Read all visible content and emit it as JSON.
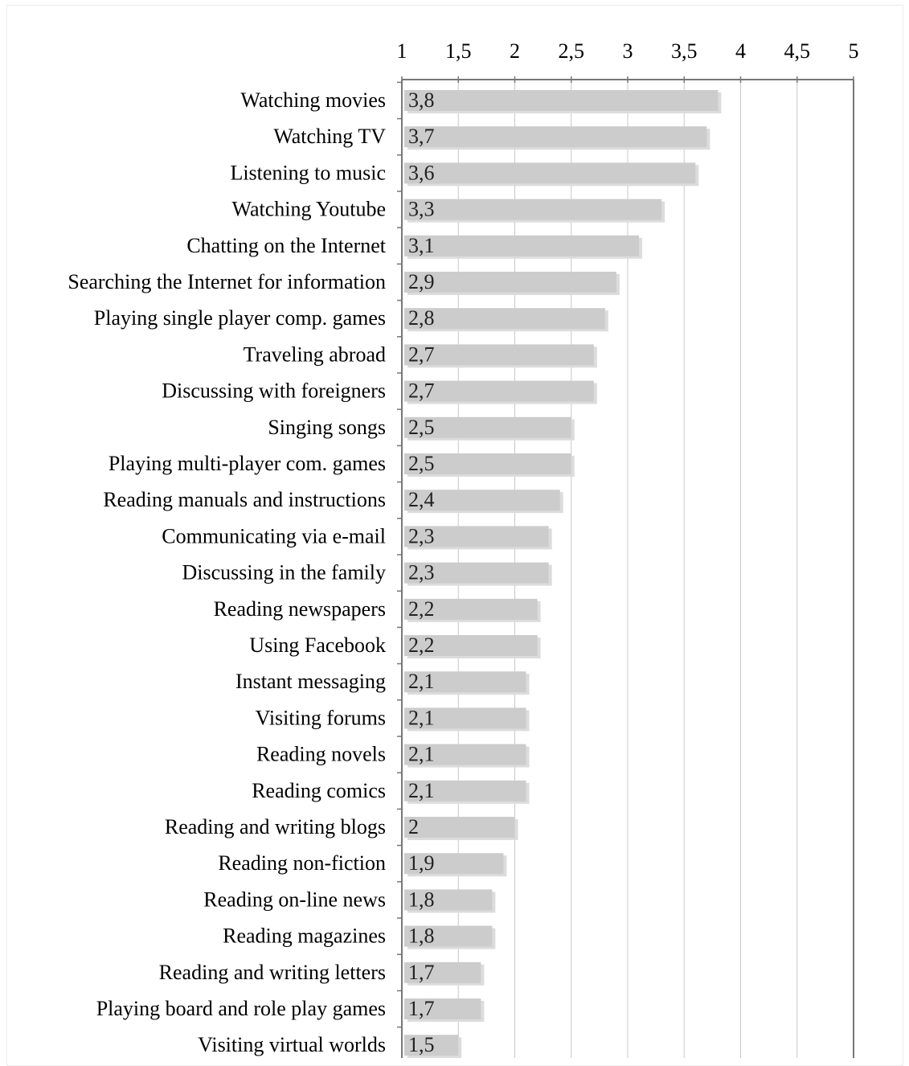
{
  "chart_data": {
    "type": "bar",
    "orientation": "horizontal",
    "title": "",
    "xlabel": "",
    "ylabel": "",
    "xlim": [
      1,
      5
    ],
    "x_ticks": [
      "1",
      "1,5",
      "2",
      "2,5",
      "3",
      "3,5",
      "4",
      "4,5",
      "5"
    ],
    "x_tick_values": [
      1,
      1.5,
      2,
      2.5,
      3,
      3.5,
      4,
      4.5,
      5
    ],
    "grid": true,
    "legend": "none",
    "bar_color": "#cccccc",
    "shadow_color": "#dcdcdc",
    "categories": [
      "Watching movies",
      "Watching TV",
      "Listening to music",
      "Watching Youtube",
      "Chatting on the Internet",
      "Searching the Internet for information",
      "Playing single player comp. games",
      "Traveling abroad",
      "Discussing with foreigners",
      "Singing songs",
      "Playing multi-player com. games",
      "Reading manuals and instructions",
      "Communicating via e-mail",
      "Discussing in the family",
      "Reading newspapers",
      "Using Facebook",
      "Instant messaging",
      "Visiting forums",
      "Reading novels",
      "Reading comics",
      "Reading and writing blogs",
      "Reading non-fiction",
      "Reading on-line news",
      "Reading magazines",
      "Reading and writing letters",
      "Playing board and role play games",
      "Visiting virtual worlds"
    ],
    "values": [
      3.8,
      3.7,
      3.6,
      3.3,
      3.1,
      2.9,
      2.8,
      2.7,
      2.7,
      2.5,
      2.5,
      2.4,
      2.3,
      2.3,
      2.2,
      2.2,
      2.1,
      2.1,
      2.1,
      2.1,
      2.0,
      1.9,
      1.8,
      1.8,
      1.7,
      1.7,
      1.5
    ],
    "value_labels": [
      "3,8",
      "3,7",
      "3,6",
      "3,3",
      "3,1",
      "2,9",
      "2,8",
      "2,7",
      "2,7",
      "2,5",
      "2,5",
      "2,4",
      "2,3",
      "2,3",
      "2,2",
      "2,2",
      "2,1",
      "2,1",
      "2,1",
      "2,1",
      "2",
      "1,9",
      "1,8",
      "1,8",
      "1,7",
      "1,7",
      "1,5"
    ]
  }
}
